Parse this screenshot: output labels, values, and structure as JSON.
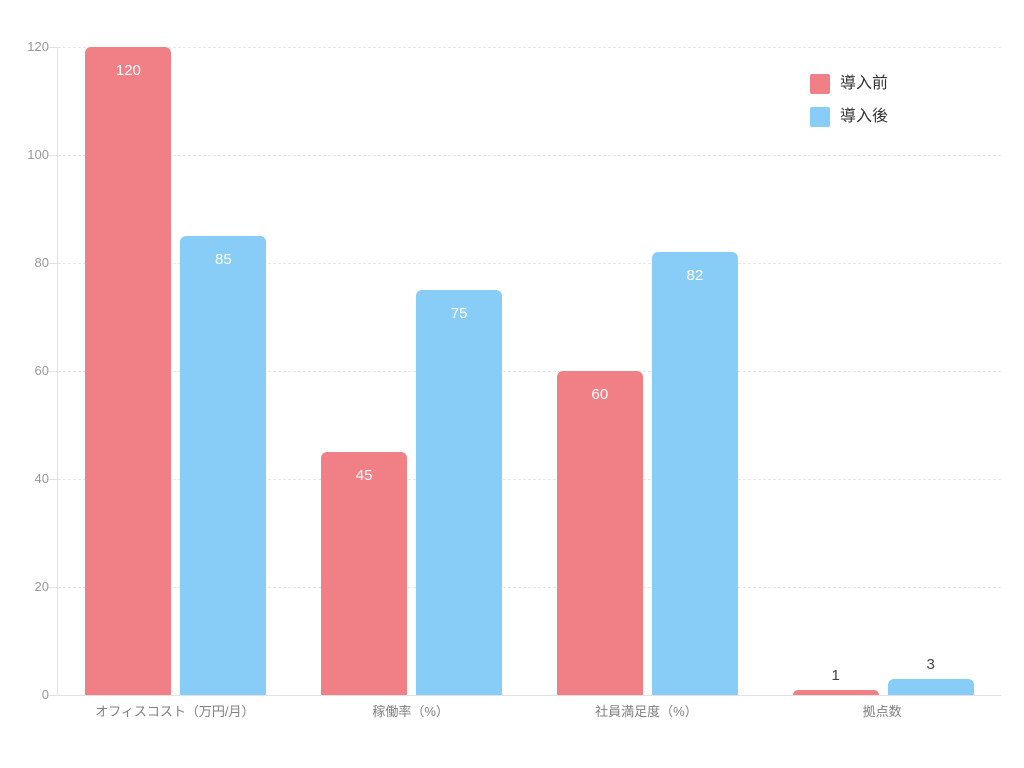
{
  "chart_data": {
    "type": "bar",
    "title": "",
    "xlabel": "",
    "ylabel": "",
    "categories": [
      "オフィスコスト（万円/月）",
      "稼働率（%）",
      "社員満足度（%）",
      "拠点数"
    ],
    "series": [
      {
        "name": "導入前",
        "color": "#f08085",
        "values": [
          120,
          45,
          60,
          1
        ]
      },
      {
        "name": "導入後",
        "color": "#87cdf8",
        "values": [
          85,
          75,
          82,
          3
        ]
      }
    ],
    "ylim": [
      0,
      120
    ],
    "yticks": [
      0,
      20,
      40,
      60,
      80,
      100,
      120
    ],
    "grid": "horizontal-dashed",
    "legend_position": "top-right",
    "value_label_style": "white inside bar top; dark gray above bar when bar is too short"
  },
  "colors": {
    "background": "#ffffff",
    "gridline": "#e8e8e8",
    "axis_line": "#e2e2e2",
    "tick_label": "#999999",
    "category_label": "#808080",
    "legend_text": "#333333",
    "value_label_inside": "#ffffff",
    "value_label_outside": "#444444"
  }
}
